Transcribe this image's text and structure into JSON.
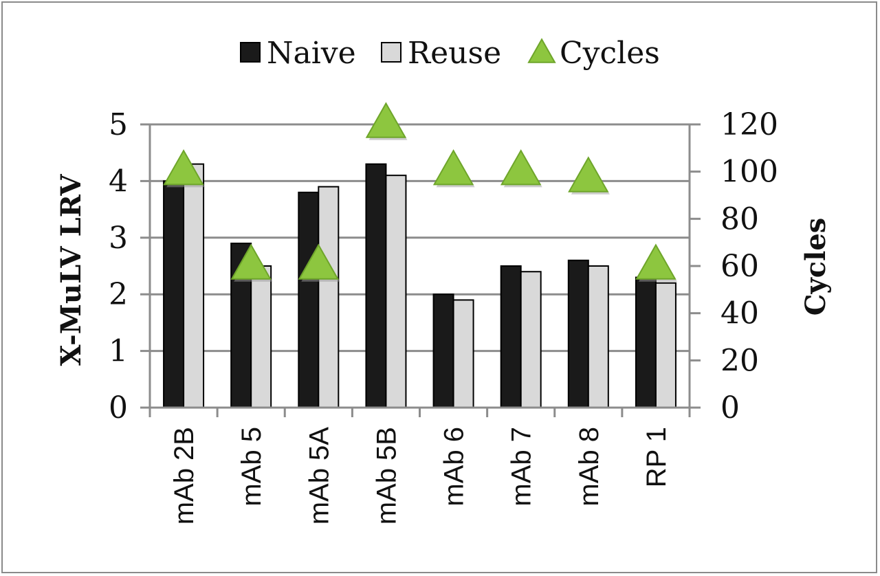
{
  "chart_data": {
    "type": "bar",
    "categories": [
      "mAb 2B",
      "mAb 5",
      "mAb 5A",
      "mAb 5B",
      "mAb 6",
      "mAb 7",
      "mAb 8",
      "RP 1"
    ],
    "series": [
      {
        "name": "Naive",
        "axis": "left",
        "kind": "bar",
        "color": "#1a1a1a",
        "values": [
          4.0,
          2.9,
          3.8,
          4.3,
          2.0,
          2.5,
          2.6,
          2.3
        ]
      },
      {
        "name": "Reuse",
        "axis": "left",
        "kind": "bar",
        "color": "#d9d9d9",
        "values": [
          4.3,
          2.5,
          3.9,
          4.1,
          1.9,
          2.4,
          2.5,
          2.2
        ]
      },
      {
        "name": "Cycles",
        "axis": "right",
        "kind": "marker",
        "marker": "triangle",
        "color": "#8dc63f",
        "values": [
          100,
          60,
          60,
          120,
          100,
          100,
          97,
          60
        ]
      }
    ],
    "ylabel": "X-MuLV LRV",
    "y2label": "Cycles",
    "ylim": [
      0,
      5
    ],
    "y2lim": [
      0,
      120
    ],
    "yticks": [
      "0",
      "1",
      "2",
      "3",
      "4",
      "5"
    ],
    "y2ticks": [
      "0",
      "20",
      "40",
      "60",
      "80",
      "100",
      "120"
    ],
    "grid": true,
    "legend_position": "top"
  }
}
